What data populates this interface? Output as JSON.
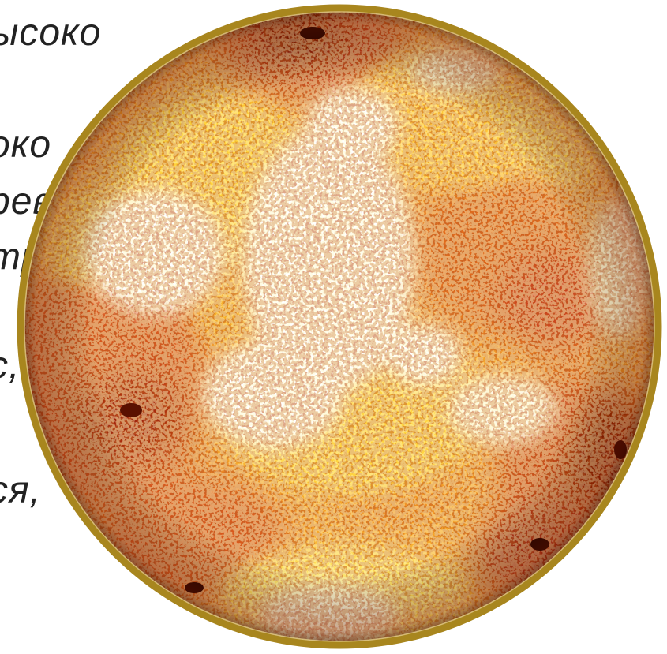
{
  "text_lines": [
    "ысоко",
    "око",
    "рев",
    "тр",
    "с,",
    "ся,",
    "."
  ],
  "globe": {
    "rim_color": "#a8861e",
    "hot_color": "#ffffff",
    "warm_color": "#ffd23a",
    "mid_color": "#f08a1c",
    "cool_color": "#b8320a",
    "dark_color": "#3a0a00"
  }
}
